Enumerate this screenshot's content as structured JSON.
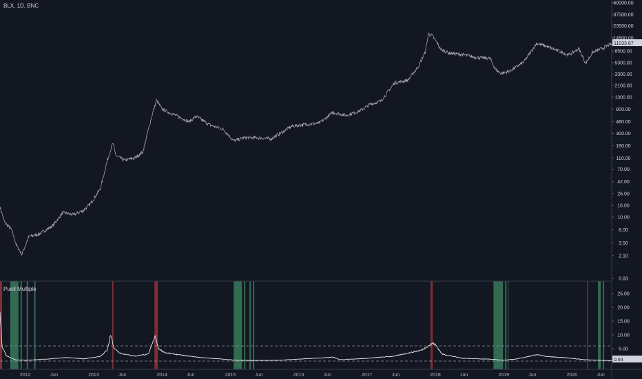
{
  "header": {
    "symbol_line": "BLX, 1D, BNC"
  },
  "indicator": {
    "name": "Puell Multiple"
  },
  "price_tag": "11033.87",
  "puell_tag": "0.64",
  "chart_data": [
    {
      "type": "line",
      "title": "BLX, 1D, BNC",
      "yscale": "log",
      "x_ticks": [
        "2012",
        "Jun",
        "2013",
        "Jun",
        "2014",
        "Jun",
        "2015",
        "Jun",
        "2016",
        "Jun",
        "2017",
        "Jun",
        "2018",
        "Jun",
        "2019",
        "Jun",
        "2020",
        "Jun"
      ],
      "y_ticks": [
        "60000.00",
        "37500.00",
        "23500.00",
        "14500.00",
        "8500.00",
        "5300.00",
        "3300.00",
        "2100.00",
        "1300.00",
        "800.00",
        "480.00",
        "300.00",
        "180.00",
        "110.00",
        "70.00",
        "42.00",
        "26.00",
        "16.00",
        "10.00",
        "6.00",
        "3.50",
        "2.10",
        "0.83"
      ],
      "series": [
        {
          "x": [
            2011.63,
            2011.7,
            2011.8,
            2011.87,
            2011.95,
            2012.05,
            2012.2,
            2012.4,
            2012.55,
            2012.7,
            2012.85,
            2012.95,
            2013.1,
            2013.2,
            2013.28,
            2013.33,
            2013.45,
            2013.6,
            2013.72,
            2013.85,
            2013.92,
            2014.0,
            2014.2,
            2014.4,
            2014.5,
            2014.7,
            2014.9,
            2015.05,
            2015.2,
            2015.4,
            2015.6,
            2015.75,
            2015.9,
            2016.1,
            2016.3,
            2016.5,
            2016.7,
            2016.9,
            2017.05,
            2017.2,
            2017.4,
            2017.6,
            2017.75,
            2017.85,
            2017.9,
            2017.96,
            2018.02,
            2018.08,
            2018.2,
            2018.4,
            2018.6,
            2018.8,
            2018.88,
            2018.96,
            2019.1,
            2019.3,
            2019.48,
            2019.6,
            2019.8,
            2019.95,
            2020.1,
            2020.2,
            2020.3,
            2020.45,
            2020.55
          ],
          "y": [
            15,
            8,
            6,
            3.2,
            2.2,
            4.5,
            5,
            7,
            12,
            11,
            13,
            17,
            32,
            100,
            200,
            120,
            100,
            110,
            140,
            600,
            1150,
            800,
            620,
            480,
            600,
            420,
            350,
            220,
            250,
            250,
            240,
            310,
            400,
            430,
            450,
            700,
            620,
            750,
            980,
            1100,
            2300,
            2600,
            4500,
            8000,
            17000,
            15500,
            12000,
            9000,
            7800,
            7300,
            6500,
            6300,
            4000,
            3400,
            3800,
            5500,
            11500,
            10500,
            8500,
            7200,
            9300,
            5100,
            8000,
            9500,
            11034
          ]
        }
      ]
    },
    {
      "type": "line",
      "title": "Puell Multiple",
      "y_ticks": [
        "25.00",
        "20.00",
        "15.00",
        "10.00",
        "5.00",
        "0.64"
      ],
      "thresholds": [
        6.0,
        0.5
      ],
      "series": [
        {
          "name": "Puell Multiple",
          "x": [
            2011.63,
            2011.66,
            2011.72,
            2011.85,
            2012.0,
            2012.3,
            2012.6,
            2012.85,
            2013.1,
            2013.2,
            2013.25,
            2013.3,
            2013.4,
            2013.6,
            2013.8,
            2013.9,
            2013.95,
            2014.05,
            2014.3,
            2014.6,
            2014.9,
            2015.1,
            2015.4,
            2015.7,
            2016.0,
            2016.3,
            2016.5,
            2016.6,
            2017.0,
            2017.4,
            2017.8,
            2017.96,
            2018.0,
            2018.1,
            2018.4,
            2018.8,
            2019.0,
            2019.2,
            2019.5,
            2019.6,
            2019.9,
            2020.2,
            2020.4,
            2020.55
          ],
          "values": [
            18,
            6,
            2.5,
            1.0,
            0.8,
            1.2,
            1.8,
            1.3,
            2.2,
            4.5,
            10,
            5,
            3.2,
            2.3,
            3.0,
            9.5,
            5,
            3.5,
            2.6,
            1.7,
            1.2,
            0.8,
            0.7,
            0.8,
            1.2,
            1.6,
            2.0,
            1.0,
            1.5,
            2.3,
            4.5,
            7.0,
            6.5,
            3.0,
            1.5,
            1.2,
            0.8,
            1.3,
            2.9,
            2.2,
            1.7,
            1.0,
            0.8,
            0.64
          ]
        }
      ]
    }
  ]
}
